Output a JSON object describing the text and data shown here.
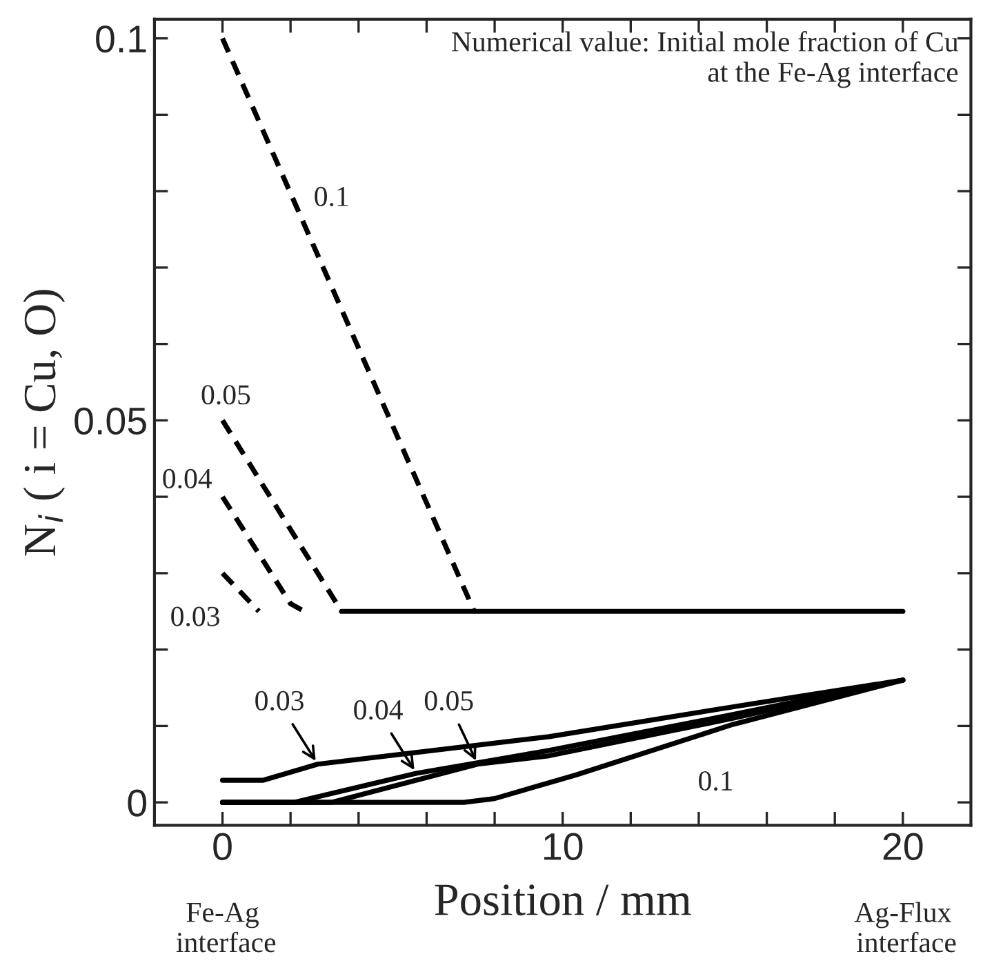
{
  "chart_data": {
    "type": "line",
    "xlabel": "Position / mm",
    "ylabel": "N$_{i}$ ( i = Cu, O)",
    "xlim": [
      -2,
      22
    ],
    "ylim": [
      -0.003,
      0.1025
    ],
    "xticks": [
      {
        "value": -2,
        "label": null
      },
      0,
      {
        "value": 2,
        "label": null
      },
      {
        "value": 4,
        "label": null
      },
      {
        "value": 6,
        "label": null
      },
      {
        "value": 8,
        "label": null
      },
      10,
      {
        "value": 12,
        "label": null
      },
      {
        "value": 14,
        "label": null
      },
      {
        "value": 16,
        "label": null
      },
      {
        "value": 18,
        "label": null
      },
      20
    ],
    "yticks": [
      0,
      {
        "value": 0.01,
        "label": null
      },
      {
        "value": 0.02,
        "label": null
      },
      {
        "value": 0.03,
        "label": null
      },
      {
        "value": 0.04,
        "label": null
      },
      0.05,
      {
        "value": 0.06,
        "label": null
      },
      {
        "value": 0.07,
        "label": null
      },
      {
        "value": 0.08,
        "label": null
      },
      {
        "value": 0.09,
        "label": null
      },
      0.1
    ],
    "grid": false,
    "legend": false,
    "marker": "none",
    "series": [
      {
        "color": "#000000",
        "line_style": "dashed",
        "x": [
          0,
          7.4
        ],
        "values": [
          0.1,
          0.025
        ]
      },
      {
        "color": "#000000",
        "line_style": "dashed",
        "x": [
          0,
          3.5
        ],
        "values": [
          0.05,
          0.025
        ]
      },
      {
        "color": "#000000",
        "line_style": "dashed",
        "x": [
          0,
          2.0,
          2.4
        ],
        "values": [
          0.04,
          0.026,
          0.025
        ]
      },
      {
        "color": "#000000",
        "line_style": "dashed",
        "x": [
          0,
          1.07
        ],
        "values": [
          0.03,
          0.025
        ]
      },
      {
        "color": "#000000",
        "line_style": "solid",
        "x": [
          3.5,
          20
        ],
        "values": [
          0.025,
          0.025
        ]
      },
      {
        "color": "#000000",
        "line_style": "solid",
        "x": [
          0,
          1.2,
          2.8,
          9.6,
          15,
          20
        ],
        "values": [
          0.0029,
          0.0029,
          0.005,
          0.0086,
          0.0125,
          0.016
        ]
      },
      {
        "color": "#000000",
        "line_style": "solid",
        "x": [
          0,
          2.1,
          5.7,
          9.6,
          15,
          20
        ],
        "values": [
          0,
          0,
          0.0038,
          0.0068,
          0.0115,
          0.016
        ]
      },
      {
        "color": "#000000",
        "line_style": "solid",
        "x": [
          0,
          3.2,
          7.5,
          9.6,
          15,
          20
        ],
        "values": [
          0,
          0,
          0.005,
          0.0061,
          0.011,
          0.016
        ]
      },
      {
        "color": "#000000",
        "line_style": "solid",
        "x": [
          0,
          7.1,
          8.0,
          10.4,
          15,
          20
        ],
        "values": [
          0,
          0,
          0.0005,
          0.0036,
          0.0102,
          0.016
        ]
      }
    ],
    "annotations": [
      "Numerical value: Initial mole fraction of Cu\nat the Fe-Ag interface",
      "Fe-Ag\n interface",
      "Ag-Flux\n interface",
      "0.1",
      "0.05",
      "0.04",
      "0.03",
      {
        "text": "0.03",
        "x": 2.8,
        "y": 0.005
      },
      {
        "text": "0.04",
        "x": 5.7,
        "y": 0.0038
      },
      {
        "text": "0.05",
        "x": 7.5,
        "y": 0.005
      },
      "0.1"
    ]
  }
}
